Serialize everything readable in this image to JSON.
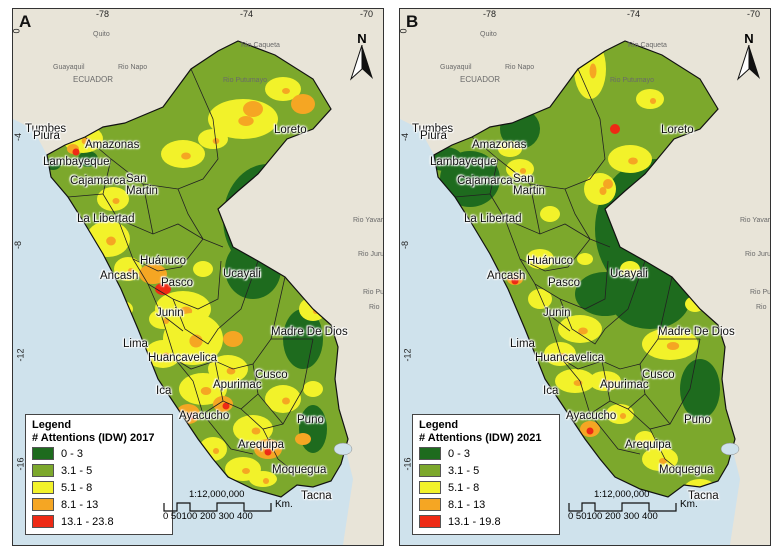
{
  "panels": [
    {
      "id": "A",
      "letter": "A",
      "legend": {
        "title_line1": "Legend",
        "title_line2": "# Attentions (IDW) 2017",
        "classes": [
          {
            "range": "0 - 3",
            "color": "#1e6b1e"
          },
          {
            "range": "3.1 - 5",
            "color": "#7ca82c"
          },
          {
            "range": "5.1 - 8",
            "color": "#f2f22a"
          },
          {
            "range": "8.1 - 13",
            "color": "#f5a623"
          },
          {
            "range": "13.1 - 23.8",
            "color": "#ee2a15"
          }
        ]
      }
    },
    {
      "id": "B",
      "letter": "B",
      "legend": {
        "title_line1": "Legend",
        "title_line2": "# Attentions (IDW) 2021",
        "classes": [
          {
            "range": "0 - 3",
            "color": "#1e6b1e"
          },
          {
            "range": "3.1 - 5",
            "color": "#7ca82c"
          },
          {
            "range": "5.1 - 8",
            "color": "#f2f22a"
          },
          {
            "range": "8.1 - 13",
            "color": "#f5a623"
          },
          {
            "range": "13.1 - 19.8",
            "color": "#ee2a15"
          }
        ]
      }
    }
  ],
  "north_label": "N",
  "scale": {
    "ratio": "1:12,000,000",
    "ticks": "0 50100 200 300 400",
    "unit": "Km."
  },
  "longitude_labels": [
    "-78",
    "-74",
    "-70"
  ],
  "latitude_labels": [
    "0",
    "-4",
    "-8",
    "-12",
    "-16"
  ],
  "regions": [
    "Tumbes",
    "Piura",
    "Amazonas",
    "Loreto",
    "Lambayeque",
    "Cajamarca",
    "San",
    "Martin",
    "La Libertad",
    "Huánuco",
    "Ancash",
    "Pasco",
    "Ucayali",
    "Junin",
    "Lima",
    "Huancavelica",
    "Madre De Dios",
    "Cusco",
    "Ica",
    "Apurimac",
    "Ayacucho",
    "Puno",
    "Arequipa",
    "Moquegua",
    "Tacna"
  ],
  "background_labels": {
    "country": "ECUADOR",
    "cities": [
      "Quito",
      "Guayaquil"
    ],
    "rivers": [
      "Rio Napo",
      "Rio Caqueta",
      "Rio Putumayo",
      "Rio Yavari",
      "Rio Jurua",
      "Rio Purus",
      "Rio"
    ]
  }
}
